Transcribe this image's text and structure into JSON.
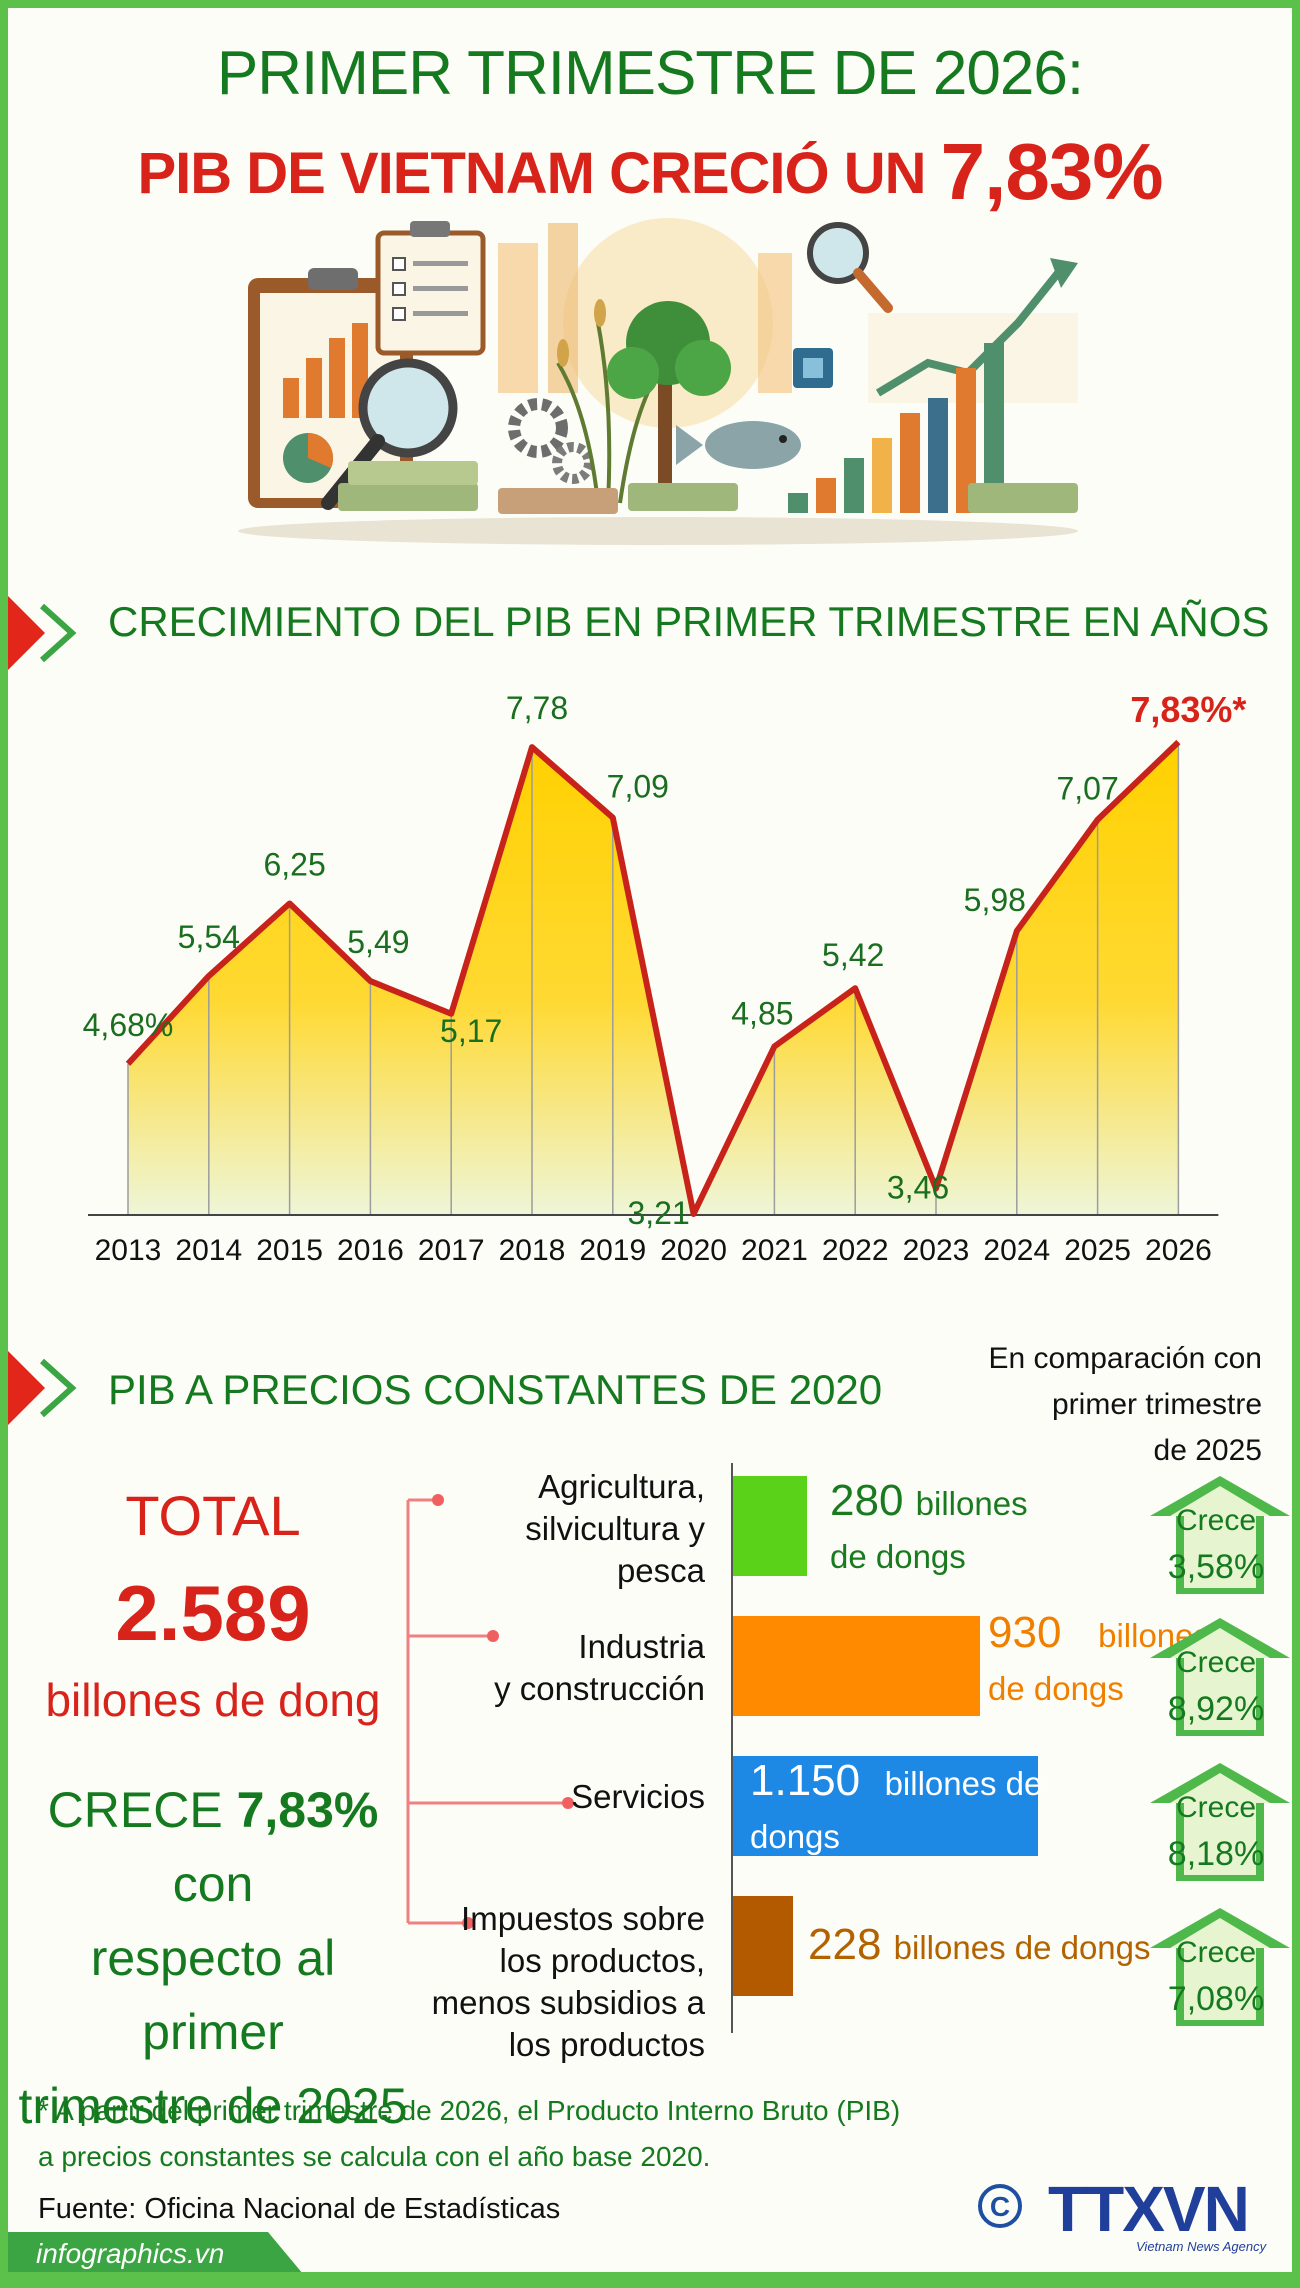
{
  "header": {
    "title_line1": "PRIMER TRIMESTRE DE 2026:",
    "title_line2_text": "PIB DE  VIETNAM CRECIÓ UN",
    "title_line2_value": "7,83%"
  },
  "section1": {
    "title": "CRECIMIENTO DEL PIB EN PRIMER TRIMESTRE EN AÑOS"
  },
  "chart_data": {
    "type": "area",
    "title": "CRECIMIENTO DEL PIB EN PRIMER TRIMESTRE EN AÑOS",
    "categories": [
      "2013",
      "2014",
      "2015",
      "2016",
      "2017",
      "2018",
      "2019",
      "2020",
      "2021",
      "2022",
      "2023",
      "2024",
      "2025",
      "2026"
    ],
    "values": [
      4.68,
      5.54,
      6.25,
      5.49,
      5.17,
      7.78,
      7.09,
      3.21,
      4.85,
      5.42,
      3.46,
      5.98,
      7.07,
      7.83
    ],
    "labels": [
      "4,68%",
      "5,54",
      "6,25",
      "5,49",
      "5,17",
      "7,78",
      "7,09",
      "3,21",
      "4,85",
      "5,42",
      "3,46",
      "5,98",
      "7,07",
      "7,83%*"
    ],
    "ylim": [
      3.2,
      7.85
    ],
    "grid": "vertical lines",
    "colors": {
      "line": "#c8231a",
      "fill_top": "#ffd100",
      "fill_bottom": "#eef6d8",
      "label": "#1a6e1f",
      "last_label": "#d8231b"
    }
  },
  "section2": {
    "title": "PIB A PRECIOS CONSTANTES DE 2020"
  },
  "compare_note": [
    "En comparación con",
    "primer trimestre",
    "de 2025"
  ],
  "total": {
    "label": "TOTAL",
    "value": "2.589",
    "unit": "billones de dong",
    "growth_prefix": "CRECE",
    "growth_value": "7,83%",
    "growth_suffix": "con",
    "growth_line2": "respecto al primer",
    "growth_line3": "trimestre de 2025"
  },
  "sectors": [
    {
      "label_lines": [
        "Agricultura,",
        "silvicultura y",
        "pesca"
      ],
      "value": "280",
      "unit_lines": [
        "billones",
        "de dongs"
      ],
      "amount": 280,
      "color": "#5bd21a",
      "text_color": "#1a7a1f",
      "growth_label": "Crece",
      "growth": "3,58%"
    },
    {
      "label_lines": [
        "Industria",
        "y construcción"
      ],
      "value": "930",
      "unit_lines": [
        "billones",
        "de dongs"
      ],
      "amount": 930,
      "color": "#ff8a00",
      "text_color": "#f07f00",
      "growth_label": "Crece",
      "growth": "8,92%"
    },
    {
      "label_lines": [
        "Servicios"
      ],
      "value": "1.150",
      "unit_lines": [
        "billones de",
        "dongs"
      ],
      "amount": 1150,
      "color": "#1e88e5",
      "text_color": "#ffffff",
      "growth_label": "Crece",
      "growth": "8,18%"
    },
    {
      "label_lines": [
        "Impuestos sobre",
        "los productos,",
        "menos subsidios a",
        "los productos"
      ],
      "value": "228",
      "unit_lines": [
        "billones de dongs"
      ],
      "amount": 228,
      "color": "#b35a00",
      "text_color": "#b36200",
      "growth_label": "Crece",
      "growth": "7,08%"
    }
  ],
  "footnote": [
    "* A partir del primer trimestre de 2026, el Producto Interno Bruto (PIB)",
    "a precios constantes se calcula con el año base 2020."
  ],
  "source": "Fuente: Oficina Nacional de Estadísticas",
  "logo": {
    "text": "TTXVN",
    "subtext": "Vietnam News Agency"
  },
  "footer": "infographics.vn"
}
